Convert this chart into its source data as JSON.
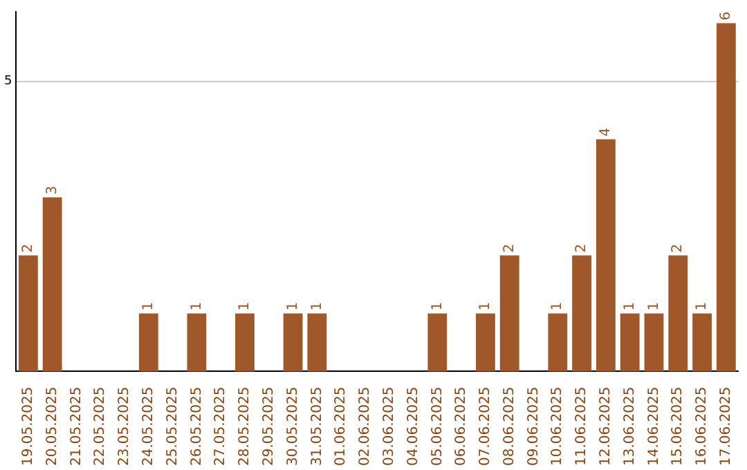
{
  "chart_data": {
    "type": "bar",
    "categories": [
      "19.05.2025",
      "20.05.2025",
      "21.05.2025",
      "22.05.2025",
      "23.05.2025",
      "24.05.2025",
      "25.05.2025",
      "26.05.2025",
      "27.05.2025",
      "28.05.2025",
      "29.05.2025",
      "30.05.2025",
      "31.05.2025",
      "01.06.2025",
      "02.06.2025",
      "03.06.2025",
      "04.06.2025",
      "05.06.2025",
      "06.06.2025",
      "07.06.2025",
      "08.06.2025",
      "09.06.2025",
      "10.06.2025",
      "11.06.2025",
      "12.06.2025",
      "13.06.2025",
      "14.06.2025",
      "15.06.2025",
      "16.06.2025",
      "17.06.2025"
    ],
    "values": [
      2,
      3,
      0,
      0,
      0,
      1,
      0,
      1,
      0,
      1,
      0,
      1,
      1,
      0,
      0,
      0,
      0,
      1,
      0,
      1,
      2,
      0,
      1,
      2,
      4,
      1,
      1,
      2,
      1,
      6
    ],
    "value_labels": [
      "2",
      "3",
      null,
      null,
      null,
      "1",
      null,
      "1",
      null,
      "1",
      null,
      "1",
      "1",
      null,
      null,
      null,
      null,
      "1",
      null,
      "1",
      "2",
      null,
      "1",
      "2",
      "4",
      "1",
      "1",
      "2",
      "1",
      "6"
    ],
    "color": "#a0582a",
    "ylim": [
      0,
      6.2
    ],
    "yticks": [
      5
    ],
    "grid": "y"
  }
}
